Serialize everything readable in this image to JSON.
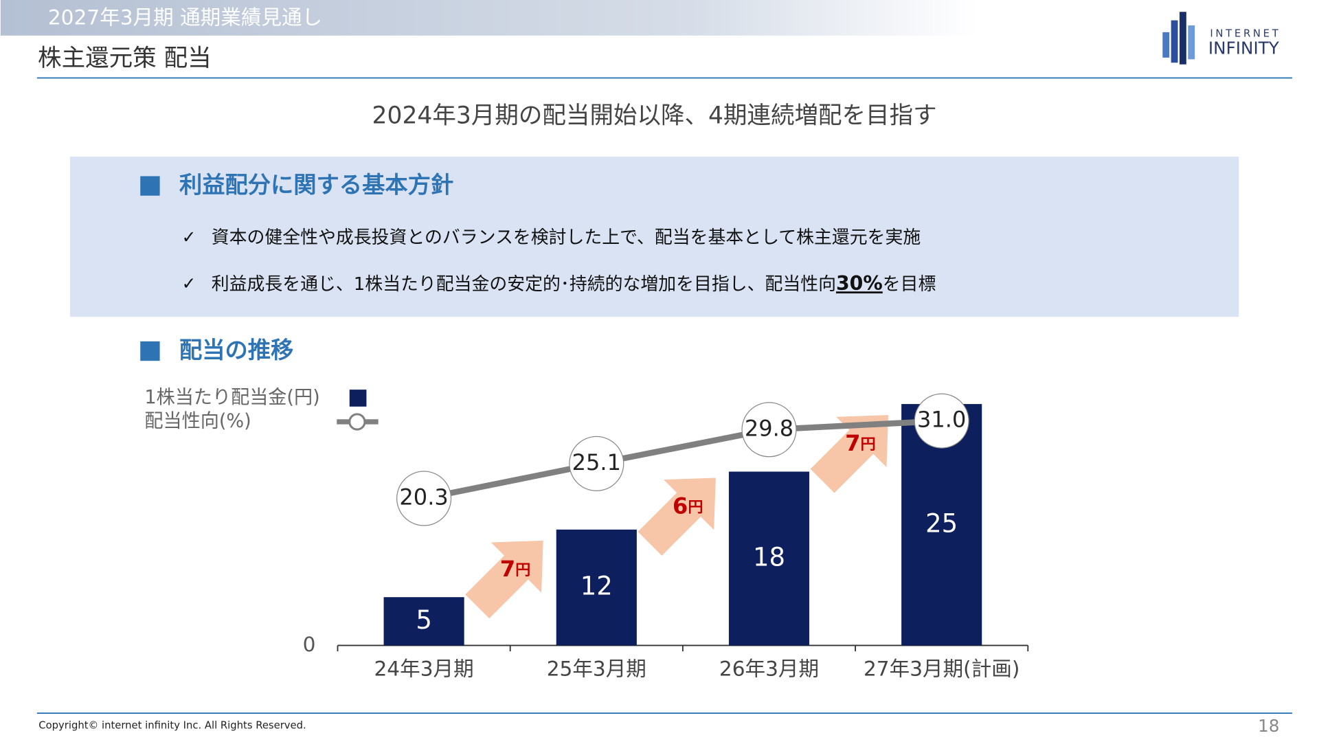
{
  "header": {
    "section": "2027年3月期 通期業績見通し",
    "title": "株主還元策 配当",
    "logo_top": "INTERNET",
    "logo_bottom": "INFINITY"
  },
  "subtitle": "2024年3月期の配当開始以降、4期連続増配を目指す",
  "policy": {
    "heading": "利益配分に関する基本方針",
    "bullets": [
      {
        "mark": "✓",
        "text": "資本の健全性や成長投資とのバランスを検討した上で、配当を基本として株主還元を実施"
      },
      {
        "mark": "✓",
        "text": "利益成長を通じ、1株当たり配当金の安定的･持続的な増加を目指し、配当性向",
        "emphasis": "30%",
        "after": "を目標"
      }
    ]
  },
  "chart_heading": "配当の推移",
  "chart_data": {
    "type": "bar",
    "categories": [
      "24年3月期",
      "25年3月期",
      "26年3月期",
      "27年3月期(計画)"
    ],
    "series": [
      {
        "name": "1株当たり配当金(円)",
        "type": "bar",
        "color": "#0d1f5c",
        "values": [
          5,
          12,
          18,
          25
        ]
      },
      {
        "name": "配当性向(%)",
        "type": "line",
        "axis": "y2",
        "color": "#808080",
        "values": [
          20.3,
          25.1,
          29.8,
          31.0
        ],
        "value_labels": [
          "20.3",
          "25.1",
          "29.8",
          "31.0"
        ]
      }
    ],
    "ylim": [
      0,
      30
    ],
    "yticks": [
      0
    ],
    "y2lim": [
      0,
      40
    ],
    "legend": "top-left",
    "annotations": [
      {
        "text": "7",
        "unit": "円"
      },
      {
        "text": "6",
        "unit": "円"
      },
      {
        "text": "7",
        "unit": "円"
      }
    ]
  },
  "footer": {
    "copyright": "Copyright© internet infinity Inc. All Rights Reserved.",
    "page": "18"
  }
}
